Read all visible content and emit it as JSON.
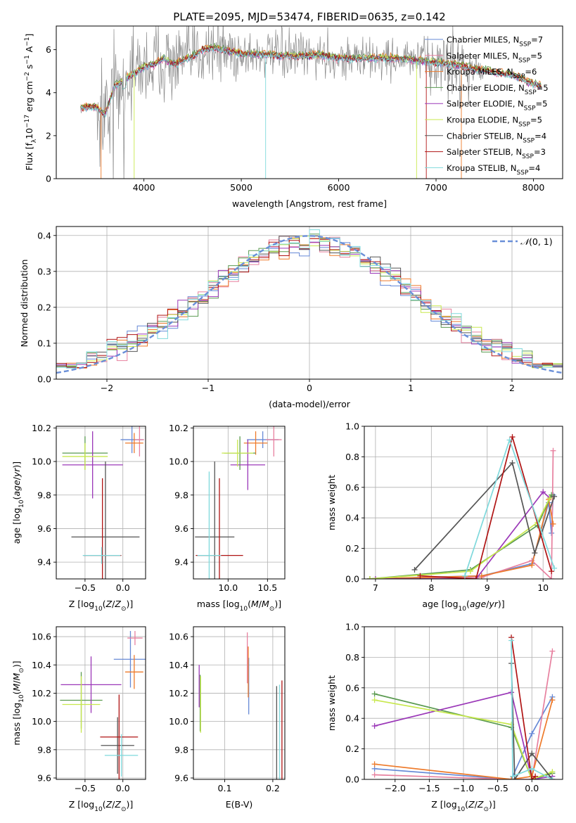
{
  "figure": {
    "title": "PLATE=2095, MJD=53474, FIBERID=0635, z=0.142"
  },
  "colors": {
    "Chabrier MILES": "#6689d6",
    "Salpeter MILES": "#e7809f",
    "Kroupa MILES": "#ee7a2a",
    "Chabrier ELODIE": "#5a9a50",
    "Salpeter ELODIE": "#9b38b8",
    "Kroupa ELODIE": "#c8e84e",
    "Chabrier STELIB": "#555555",
    "Salpeter STELIB": "#b01414",
    "Kroupa STELIB": "#7fd9dc",
    "data": "#8a8a8a",
    "gauss": "#6a8fd8"
  },
  "chart_data": [
    {
      "id": "spectrum",
      "type": "line",
      "title": "PLATE=2095, MJD=53474, FIBERID=0635, z=0.142",
      "xlabel": "wavelength [Angstrom, rest frame]",
      "ylabel": "Flux [f_λ 10^-17 erg cm^-2 s^-1 A^-1]",
      "xlim": [
        3100,
        8300
      ],
      "ylim": [
        0,
        7.1
      ],
      "xticks": [
        4000,
        5000,
        6000,
        7000,
        8000
      ],
      "yticks": [
        0,
        2,
        4,
        6
      ],
      "legend_position": "top-right",
      "legend": [
        "Chabrier MILES, N_SSP=7",
        "Salpeter MILES, N_SSP=5",
        "Kroupa MILES, N_SSP=6",
        "Chabrier ELODIE, N_SSP=5",
        "Salpeter ELODIE, N_SSP=5",
        "Kroupa ELODIE, N_SSP=5",
        "Chabrier STELIB, N_SSP=4",
        "Salpeter STELIB, N_SSP=3",
        "Kroupa STELIB, N_SSP=4"
      ],
      "continuum_x": [
        3350,
        3500,
        3600,
        3700,
        3800,
        3900,
        4000,
        4100,
        4200,
        4300,
        4400,
        4500,
        4600,
        4700,
        4800,
        4900,
        5000,
        5200,
        5400,
        5600,
        5800,
        6000,
        6200,
        6400,
        6600,
        6800,
        7000,
        7200,
        7400,
        7600,
        7800,
        8000,
        8100
      ],
      "continuum_y": [
        3.3,
        3.35,
        3.0,
        4.3,
        4.6,
        4.9,
        5.2,
        5.3,
        5.6,
        5.3,
        5.5,
        5.7,
        6.0,
        6.1,
        6.0,
        5.9,
        5.8,
        5.8,
        5.7,
        5.7,
        5.75,
        5.6,
        5.6,
        5.6,
        5.6,
        5.5,
        5.4,
        5.3,
        5.1,
        4.95,
        4.8,
        4.4,
        4.3
      ]
    },
    {
      "id": "residuals",
      "type": "histogram",
      "xlabel": "(data-model)/error",
      "ylabel": "Normed distribution",
      "xlim": [
        -2.5,
        2.5
      ],
      "ylim": [
        0,
        0.425
      ],
      "xticks": [
        -2,
        -1,
        0,
        1,
        2
      ],
      "yticks": [
        0.0,
        0.1,
        0.2,
        0.3,
        0.4
      ],
      "legend_position": "top-right",
      "legend": [
        "𝒩(0,1)"
      ],
      "bin_width": 0.1,
      "grid": true
    },
    {
      "id": "age_vs_Z",
      "type": "errorbar",
      "xlabel": "Z [log10(Z/Z⊙)]",
      "ylabel": "age  [log10(age/yr)]",
      "xlim": [
        -0.88,
        0.3
      ],
      "ylim": [
        9.3,
        10.21
      ],
      "xticks": [
        -0.5,
        0.0
      ],
      "yticks": [
        9.4,
        9.6,
        9.8,
        10.0,
        10.2
      ],
      "grid": true,
      "points": [
        {
          "series": "Chabrier MILES",
          "x": 0.12,
          "y": 10.13,
          "xerr": 0.15,
          "yerr": 0.08
        },
        {
          "series": "Salpeter MILES",
          "x": 0.22,
          "y": 10.13,
          "xerr": 0.06,
          "yerr": 0.1
        },
        {
          "series": "Kroupa MILES",
          "x": 0.15,
          "y": 10.11,
          "xerr": 0.12,
          "yerr": 0.06
        },
        {
          "series": "Chabrier ELODIE",
          "x": -0.5,
          "y": 10.05,
          "xerr": 0.3,
          "yerr": 0.1
        },
        {
          "series": "Salpeter ELODIE",
          "x": -0.4,
          "y": 9.98,
          "xerr": 0.4,
          "yerr": 0.2
        },
        {
          "series": "Kroupa ELODIE",
          "x": -0.5,
          "y": 10.03,
          "xerr": 0.3,
          "yerr": 0.08
        },
        {
          "series": "Chabrier STELIB",
          "x": -0.23,
          "y": 9.55,
          "xerr": 0.45,
          "yerr": 0.45
        },
        {
          "series": "Salpeter STELIB",
          "x": -0.27,
          "y": 9.44,
          "xerr": 0.25,
          "yerr": 0.46
        },
        {
          "series": "Kroupa STELIB",
          "x": -0.28,
          "y": 9.44,
          "xerr": 0.25,
          "yerr": 0.05
        }
      ]
    },
    {
      "id": "age_vs_mass",
      "type": "errorbar",
      "xlabel": "mass [log10(M/M⊙)]",
      "ylabel": "",
      "xlim": [
        9.56,
        10.72
      ],
      "ylim": [
        9.3,
        10.21
      ],
      "xticks": [
        10.0,
        10.5
      ],
      "yticks": [
        9.4,
        9.6,
        9.8,
        10.0,
        10.2
      ],
      "grid": true,
      "points": [
        {
          "series": "Chabrier MILES",
          "x": 10.44,
          "y": 10.13,
          "xerr": 0.2,
          "yerr": 0.05
        },
        {
          "series": "Salpeter MILES",
          "x": 10.58,
          "y": 10.13,
          "xerr": 0.1,
          "yerr": 0.1
        },
        {
          "series": "Kroupa MILES",
          "x": 10.35,
          "y": 10.11,
          "xerr": 0.15,
          "yerr": 0.07
        },
        {
          "series": "Chabrier ELODIE",
          "x": 10.15,
          "y": 10.05,
          "xerr": 0.2,
          "yerr": 0.1
        },
        {
          "series": "Salpeter ELODIE",
          "x": 10.25,
          "y": 9.98,
          "xerr": 0.22,
          "yerr": 0.15
        },
        {
          "series": "Kroupa ELODIE",
          "x": 10.12,
          "y": 10.05,
          "xerr": 0.2,
          "yerr": 0.08
        },
        {
          "series": "Chabrier STELIB",
          "x": 9.83,
          "y": 9.55,
          "xerr": 0.25,
          "yerr": 0.45
        },
        {
          "series": "Salpeter STELIB",
          "x": 9.89,
          "y": 9.44,
          "xerr": 0.3,
          "yerr": 0.46
        },
        {
          "series": "Kroupa STELIB",
          "x": 9.76,
          "y": 9.44,
          "xerr": 0.15,
          "yerr": 0.5
        }
      ]
    },
    {
      "id": "weight_vs_age",
      "type": "line",
      "xlabel": "age  [log10(age/yr)]",
      "ylabel": "mass weight",
      "xlim": [
        6.8,
        10.35
      ],
      "ylim": [
        0,
        1.0
      ],
      "xticks": [
        7,
        8,
        9,
        10
      ],
      "yticks": [
        0.0,
        0.2,
        0.4,
        0.6,
        0.8,
        1.0
      ],
      "grid": true,
      "series": [
        {
          "color_key": "Chabrier MILES",
          "x": [
            6.9,
            7.8,
            8.9,
            9.8,
            10.1,
            10.15,
            10.18
          ],
          "y": [
            0.0,
            0.01,
            0.02,
            0.1,
            0.5,
            0.3,
            0.55
          ]
        },
        {
          "color_key": "Salpeter MILES",
          "x": [
            7.0,
            8.9,
            9.8,
            10.15,
            10.18
          ],
          "y": [
            0.0,
            0.01,
            0.12,
            0.0,
            0.84
          ]
        },
        {
          "color_key": "Kroupa MILES",
          "x": [
            6.9,
            8.9,
            9.8,
            10.1,
            10.18
          ],
          "y": [
            0.0,
            0.02,
            0.09,
            0.52,
            0.36
          ]
        },
        {
          "color_key": "Chabrier ELODIE",
          "x": [
            6.9,
            8.7,
            9.9,
            10.15
          ],
          "y": [
            0.0,
            0.06,
            0.35,
            0.55
          ]
        },
        {
          "color_key": "Salpeter ELODIE",
          "x": [
            7.0,
            8.8,
            10.0,
            10.12
          ],
          "y": [
            0.0,
            0.0,
            0.57,
            0.53
          ]
        },
        {
          "color_key": "Kroupa ELODIE",
          "x": [
            6.9,
            8.7,
            9.9,
            10.12
          ],
          "y": [
            0.0,
            0.05,
            0.37,
            0.53
          ]
        },
        {
          "color_key": "Chabrier STELIB",
          "x": [
            7.7,
            9.45,
            9.85,
            10.2
          ],
          "y": [
            0.06,
            0.76,
            0.17,
            0.54
          ]
        },
        {
          "color_key": "Salpeter STELIB",
          "x": [
            7.8,
            8.8,
            9.45,
            10.15
          ],
          "y": [
            0.02,
            0.0,
            0.93,
            0.05
          ]
        },
        {
          "color_key": "Kroupa STELIB",
          "x": [
            8.6,
            9.4,
            10.2
          ],
          "y": [
            0.02,
            0.91,
            0.07
          ]
        }
      ]
    },
    {
      "id": "mass_vs_Z",
      "type": "errorbar",
      "xlabel": "Z [log10(Z/Z⊙)]",
      "ylabel": "mass [log10(M/M⊙)]",
      "xlim": [
        -0.88,
        0.3
      ],
      "ylim": [
        9.59,
        10.67
      ],
      "xticks": [
        -0.5,
        0.0
      ],
      "yticks": [
        9.6,
        9.8,
        10.0,
        10.2,
        10.4,
        10.6
      ],
      "grid": true,
      "points": [
        {
          "series": "Chabrier MILES",
          "x": 0.1,
          "y": 10.44,
          "xerr": 0.22,
          "yerr": 0.2
        },
        {
          "series": "Salpeter MILES",
          "x": 0.16,
          "y": 10.59,
          "xerr": 0.1,
          "yerr": 0.05
        },
        {
          "series": "Kroupa MILES",
          "x": 0.15,
          "y": 10.35,
          "xerr": 0.12,
          "yerr": 0.12
        },
        {
          "series": "Chabrier ELODIE",
          "x": -0.55,
          "y": 10.15,
          "xerr": 0.28,
          "yerr": 0.2
        },
        {
          "series": "Salpeter ELODIE",
          "x": -0.42,
          "y": 10.26,
          "xerr": 0.4,
          "yerr": 0.2
        },
        {
          "series": "Kroupa ELODIE",
          "x": -0.55,
          "y": 10.12,
          "xerr": 0.25,
          "yerr": 0.2
        },
        {
          "series": "Chabrier STELIB",
          "x": -0.07,
          "y": 9.83,
          "xerr": 0.22,
          "yerr": 0.2
        },
        {
          "series": "Salpeter STELIB",
          "x": -0.05,
          "y": 9.89,
          "xerr": 0.25,
          "yerr": 0.3
        },
        {
          "series": "Kroupa STELIB",
          "x": -0.02,
          "y": 9.76,
          "xerr": 0.22,
          "yerr": 0.15
        }
      ]
    },
    {
      "id": "mass_vs_ebv",
      "type": "errorbar",
      "xlabel": "E(B-V)",
      "ylabel": "",
      "xlim": [
        0.035,
        0.225
      ],
      "ylim": [
        9.59,
        10.67
      ],
      "xticks": [
        0.1,
        0.2
      ],
      "yticks": [
        9.6,
        9.8,
        10.0,
        10.2,
        10.4,
        10.6
      ],
      "grid": true,
      "points": [
        {
          "series": "Chabrier MILES",
          "x": 0.15,
          "y": 10.25,
          "xerr": 0,
          "yerr": 0.2
        },
        {
          "series": "Salpeter MILES",
          "x": 0.147,
          "y": 10.45,
          "xerr": 0,
          "yerr": 0.18
        },
        {
          "series": "Kroupa MILES",
          "x": 0.149,
          "y": 10.35,
          "xerr": 0,
          "yerr": 0.18
        },
        {
          "series": "Chabrier ELODIE",
          "x": 0.049,
          "y": 10.13,
          "xerr": 0,
          "yerr": 0.2
        },
        {
          "series": "Salpeter ELODIE",
          "x": 0.047,
          "y": 10.25,
          "xerr": 0,
          "yerr": 0.15
        },
        {
          "series": "Kroupa ELODIE",
          "x": 0.05,
          "y": 10.12,
          "xerr": 0,
          "yerr": 0.2
        },
        {
          "series": "Chabrier STELIB",
          "x": 0.208,
          "y": 9.83,
          "xerr": 0,
          "yerr": 0.42
        },
        {
          "series": "Salpeter STELIB",
          "x": 0.219,
          "y": 9.89,
          "xerr": 0,
          "yerr": 0.4
        },
        {
          "series": "Kroupa STELIB",
          "x": 0.214,
          "y": 9.76,
          "xerr": 0,
          "yerr": 0.5
        }
      ]
    },
    {
      "id": "weight_vs_Z",
      "type": "line",
      "xlabel": "Z [log10(Z/Z⊙)]",
      "ylabel": "mass weight",
      "xlim": [
        -2.45,
        0.45
      ],
      "ylim": [
        0,
        1.0
      ],
      "xticks": [
        -2.0,
        -1.5,
        -1.0,
        -0.5,
        0.0
      ],
      "yticks": [
        0.0,
        0.2,
        0.4,
        0.6,
        0.8,
        1.0
      ],
      "grid": true,
      "series": [
        {
          "color_key": "Chabrier MILES",
          "x": [
            -2.3,
            -0.3,
            0.0,
            0.3
          ],
          "y": [
            0.07,
            0.0,
            0.3,
            0.54
          ]
        },
        {
          "color_key": "Salpeter MILES",
          "x": [
            -2.3,
            -0.3,
            0.0,
            0.3
          ],
          "y": [
            0.03,
            0.0,
            0.0,
            0.84
          ]
        },
        {
          "color_key": "Kroupa MILES",
          "x": [
            -2.3,
            -0.3,
            0.0,
            0.3
          ],
          "y": [
            0.1,
            0.0,
            0.02,
            0.52
          ]
        },
        {
          "color_key": "Chabrier ELODIE",
          "x": [
            -2.3,
            -0.3,
            0.0,
            0.3
          ],
          "y": [
            0.56,
            0.34,
            0.0,
            0.04
          ]
        },
        {
          "color_key": "Salpeter ELODIE",
          "x": [
            -2.3,
            -0.3,
            0.0,
            0.3
          ],
          "y": [
            0.35,
            0.57,
            0.0,
            0.02
          ]
        },
        {
          "color_key": "Kroupa ELODIE",
          "x": [
            -2.3,
            -0.3,
            0.0,
            0.3
          ],
          "y": [
            0.52,
            0.36,
            0.0,
            0.05
          ]
        },
        {
          "color_key": "Chabrier STELIB",
          "x": [
            -0.3,
            -0.25,
            0.0,
            0.3
          ],
          "y": [
            0.76,
            0.0,
            0.17,
            0.0
          ]
        },
        {
          "color_key": "Salpeter STELIB",
          "x": [
            -0.3,
            0.0,
            0.05
          ],
          "y": [
            0.93,
            0.0,
            0.02
          ]
        },
        {
          "color_key": "Kroupa STELIB",
          "x": [
            -0.3,
            -0.28,
            0.0,
            0.3
          ],
          "y": [
            0.91,
            0.02,
            0.07,
            0.0
          ]
        }
      ]
    }
  ]
}
